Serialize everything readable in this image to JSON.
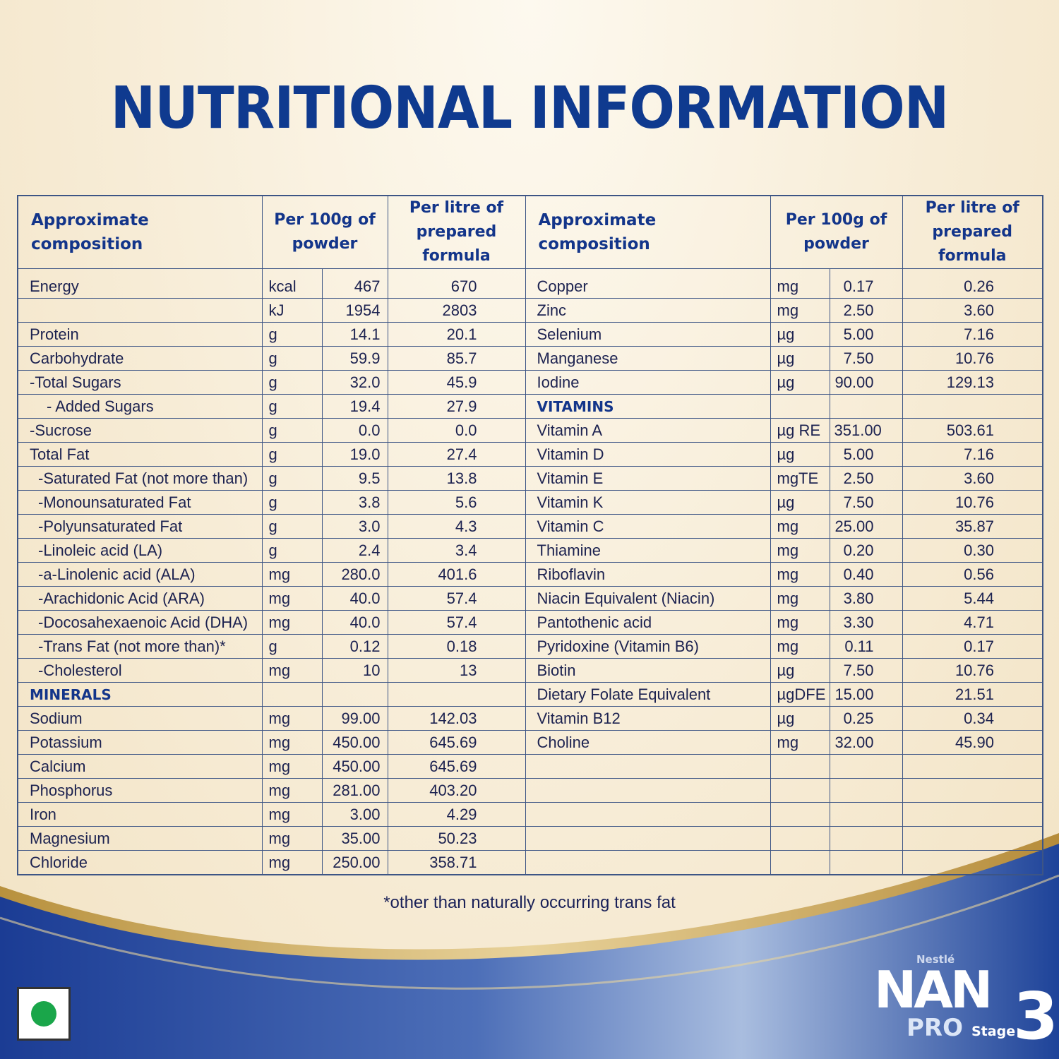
{
  "title": "NUTRITIONAL INFORMATION",
  "headers": {
    "composition": "Approximate composition",
    "per100g": "Per 100g of powder",
    "perLitre": "Per litre of prepared formula"
  },
  "left_rows": [
    [
      "Energy",
      "kcal",
      "467",
      "670"
    ],
    [
      "",
      "kJ",
      "1954",
      "2803"
    ],
    [
      "Protein",
      "g",
      "14.1",
      "20.1"
    ],
    [
      "Carbohydrate",
      "g",
      "59.9",
      "85.7"
    ],
    [
      "-Total Sugars",
      "g",
      "32.0",
      "45.9"
    ],
    [
      "- Added Sugars",
      "g",
      "19.4",
      "27.9"
    ],
    [
      "-Sucrose",
      "g",
      "0.0",
      "0.0"
    ],
    [
      "Total Fat",
      "g",
      "19.0",
      "27.4"
    ],
    [
      "-Saturated Fat (not more than)",
      "g",
      "9.5",
      "13.8"
    ],
    [
      "-Monounsaturated Fat",
      "g",
      "3.8",
      "5.6"
    ],
    [
      "-Polyunsaturated Fat",
      "g",
      "3.0",
      "4.3"
    ],
    [
      "-Linoleic acid (LA)",
      "g",
      "2.4",
      "3.4"
    ],
    [
      "-a-Linolenic acid (ALA)",
      "mg",
      "280.0",
      "401.6"
    ],
    [
      "-Arachidonic Acid (ARA)",
      "mg",
      "40.0",
      "57.4"
    ],
    [
      "-Docosahexaenoic Acid (DHA)",
      "mg",
      "40.0",
      "57.4"
    ],
    [
      "-Trans Fat (not more than)*",
      "g",
      "0.12",
      "0.18"
    ],
    [
      "-Cholesterol",
      "mg",
      "10",
      "13"
    ],
    [
      "MINERALS",
      "",
      "",
      ""
    ],
    [
      "Sodium",
      "mg",
      "99.00",
      "142.03"
    ],
    [
      "Potassium",
      "mg",
      "450.00",
      "645.69"
    ],
    [
      "Calcium",
      "mg",
      "450.00",
      "645.69"
    ],
    [
      "Phosphorus",
      "mg",
      "281.00",
      "403.20"
    ],
    [
      "Iron",
      "mg",
      "3.00",
      "4.29"
    ],
    [
      "Magnesium",
      "mg",
      "35.00",
      "50.23"
    ],
    [
      "Chloride",
      "mg",
      "250.00",
      "358.71"
    ]
  ],
  "right_rows": [
    [
      "Copper",
      "mg",
      "0.17",
      "0.26"
    ],
    [
      "Zinc",
      "mg",
      "2.50",
      "3.60"
    ],
    [
      "Selenium",
      "µg",
      "5.00",
      "7.16"
    ],
    [
      "Manganese",
      "µg",
      "7.50",
      "10.76"
    ],
    [
      "Iodine",
      "µg",
      "90.00",
      "129.13"
    ],
    [
      "VITAMINS",
      "",
      "",
      ""
    ],
    [
      "Vitamin A",
      "µg RE",
      "351.00",
      "503.61"
    ],
    [
      "Vitamin D",
      "µg",
      "5.00",
      "7.16"
    ],
    [
      "Vitamin E",
      "mgTE",
      "2.50",
      "3.60"
    ],
    [
      "Vitamin K",
      "µg",
      "7.50",
      "10.76"
    ],
    [
      "Vitamin C",
      "mg",
      "25.00",
      "35.87"
    ],
    [
      "Thiamine",
      "mg",
      "0.20",
      "0.30"
    ],
    [
      "Riboflavin",
      "mg",
      "0.40",
      "0.56"
    ],
    [
      "Niacin Equivalent (Niacin)",
      "mg",
      "3.80",
      "5.44"
    ],
    [
      "Pantothenic acid",
      "mg",
      "3.30",
      "4.71"
    ],
    [
      "Pyridoxine (Vitamin B6)",
      "mg",
      "0.11",
      "0.17"
    ],
    [
      "Biotin",
      "µg",
      "7.50",
      "10.76"
    ],
    [
      "Dietary Folate Equivalent",
      "µgDFE",
      "15.00",
      "21.51"
    ],
    [
      "Vitamin B12",
      "µg",
      "0.25",
      "0.34"
    ],
    [
      "Choline",
      "mg",
      "32.00",
      "45.90"
    ],
    [
      "",
      "",
      "",
      ""
    ],
    [
      "",
      "",
      "",
      ""
    ],
    [
      "",
      "",
      "",
      ""
    ],
    [
      "",
      "",
      "",
      ""
    ],
    [
      "",
      "",
      "",
      ""
    ]
  ],
  "section_labels": [
    "MINERALS",
    "VITAMINS"
  ],
  "footnote": "*other than naturally occurring trans fat",
  "brand": {
    "maker": "Nestlé",
    "name": "NAN",
    "line": "PRO",
    "stage_label": "Stage",
    "stage_number": "3"
  },
  "colors": {
    "title": "#0f3a8f",
    "table_border": "#3d5585",
    "header_text": "#13358a",
    "bottom_band": "#1d3f95",
    "gold_swoosh": "#c9a24a",
    "veg_dot": "#1aa64a"
  },
  "icons": [
    "veg-mark-icon",
    "nestle-bird-nest-icon"
  ]
}
